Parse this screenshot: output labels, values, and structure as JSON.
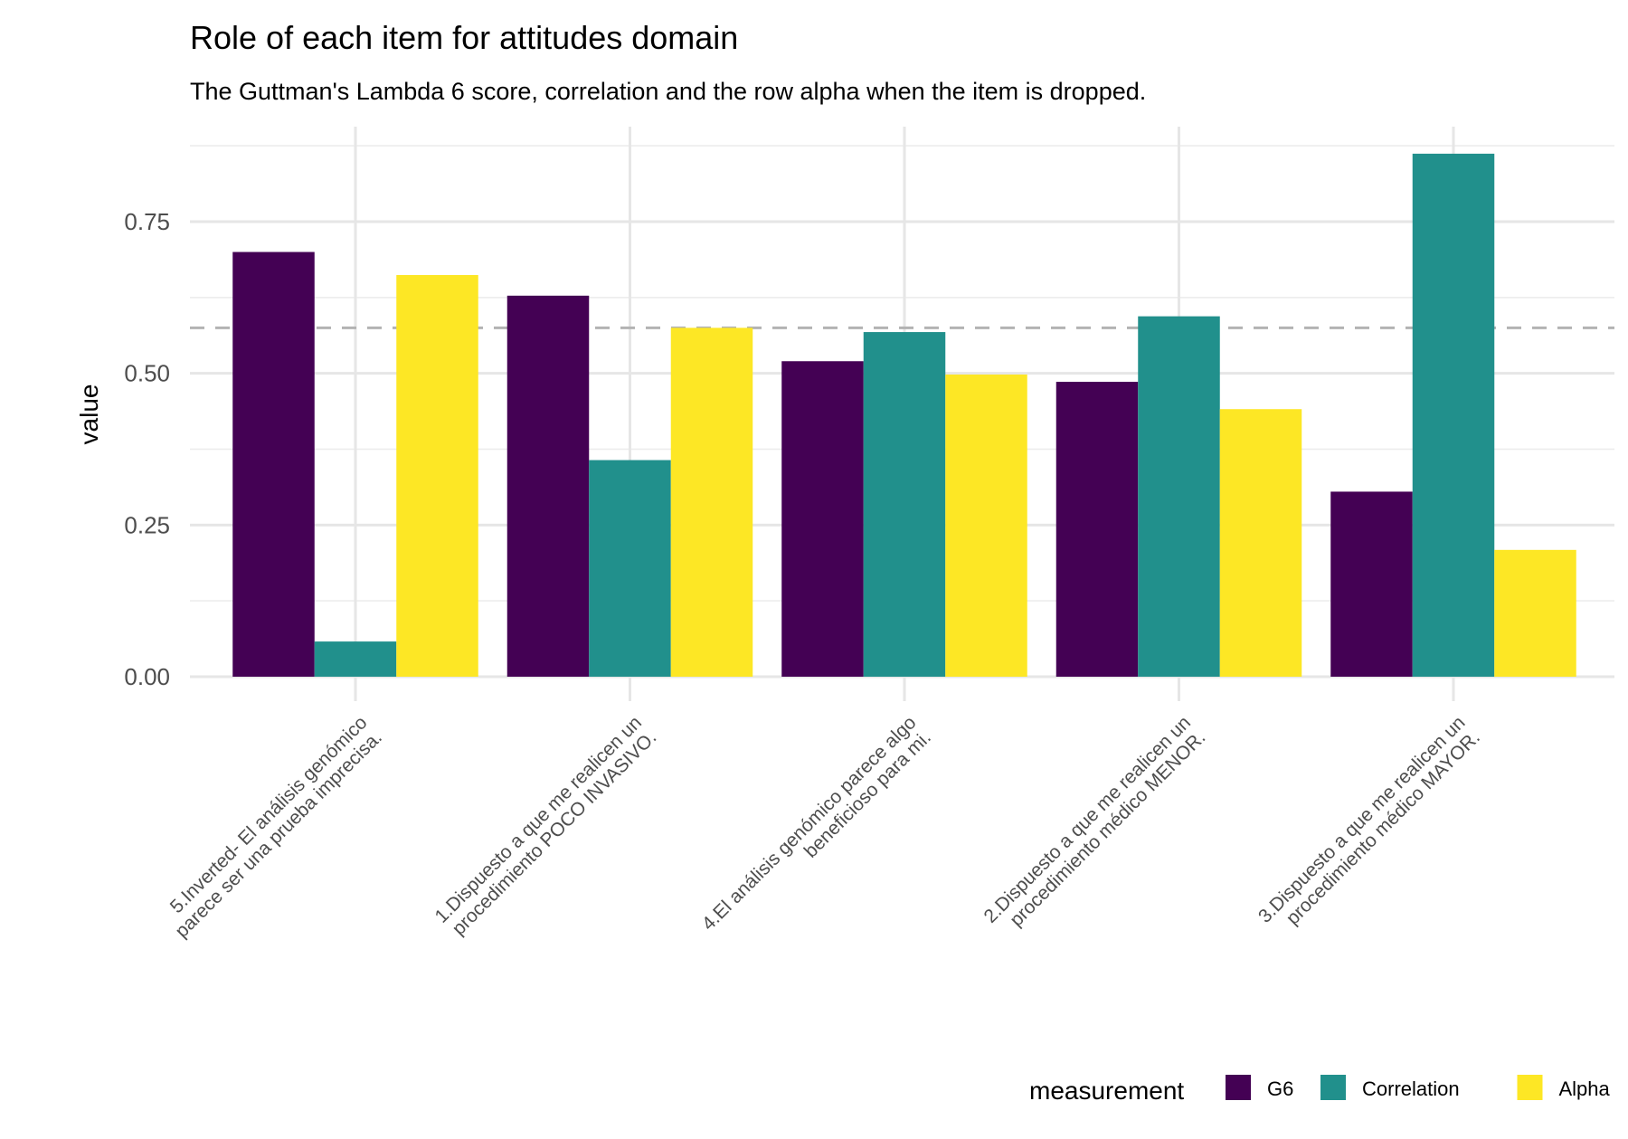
{
  "chart_data": {
    "type": "bar",
    "title": "Role of each item for attitudes domain",
    "subtitle": "The Guttman's Lambda 6 score, correlation and the row alpha when the item is dropped.",
    "xlabel": "",
    "ylabel": "value",
    "ylim": [
      0,
      0.88
    ],
    "yticks": [
      0,
      0.25,
      0.5,
      0.75
    ],
    "ytick_labels": [
      "0.00",
      "0.25",
      "0.50",
      "0.75"
    ],
    "reference_line": 0.575,
    "categories": [
      [
        "5.Inverted- El análisis genómico",
        "parece ser una prueba imprecisa."
      ],
      [
        "1.Dispuesto a que me realicen un",
        "procedimiento POCO INVASIVO."
      ],
      [
        "4.El análisis genómico parece algo",
        "beneficioso para mi."
      ],
      [
        "2.Dispuesto a que me realicen un",
        "procedimiento médico MENOR."
      ],
      [
        "3.Dispuesto a que me realicen un",
        "procedimiento médico MAYOR."
      ]
    ],
    "series": [
      {
        "name": "G6",
        "color": "#440154",
        "values": [
          0.7,
          0.628,
          0.52,
          0.486,
          0.305
        ]
      },
      {
        "name": "Correlation",
        "color": "#21908C",
        "values": [
          0.058,
          0.357,
          0.568,
          0.594,
          0.862
        ]
      },
      {
        "name": "Alpha",
        "color": "#FDE725",
        "values": [
          0.662,
          0.575,
          0.498,
          0.441,
          0.209
        ]
      }
    ],
    "legend": {
      "title": "measurement",
      "position": "bottom-right"
    }
  }
}
